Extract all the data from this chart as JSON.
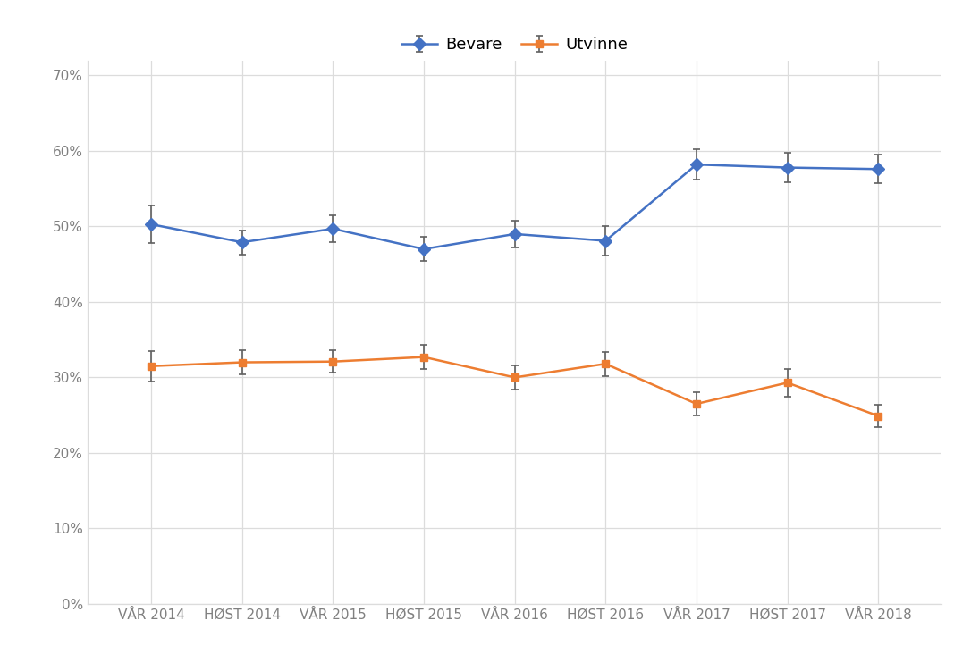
{
  "x_labels": [
    "VÅR 2014",
    "HØST 2014",
    "VÅR 2015",
    "HØST 2015",
    "VÅR 2016",
    "HØST 2016",
    "VÅR 2017",
    "HØST 2017",
    "VÅR 2018"
  ],
  "bevare_y": [
    0.503,
    0.479,
    0.497,
    0.47,
    0.49,
    0.481,
    0.582,
    0.578,
    0.576
  ],
  "bevare_err": [
    0.025,
    0.016,
    0.018,
    0.016,
    0.018,
    0.019,
    0.02,
    0.02,
    0.019
  ],
  "utvinne_y": [
    0.315,
    0.32,
    0.321,
    0.327,
    0.3,
    0.318,
    0.265,
    0.293,
    0.249
  ],
  "utvinne_err": [
    0.02,
    0.016,
    0.015,
    0.016,
    0.016,
    0.016,
    0.015,
    0.018,
    0.015
  ],
  "bevare_color": "#4472C4",
  "utvinne_color": "#ED7D31",
  "background_color": "#FFFFFF",
  "grid_color": "#DCDCDC",
  "ylim": [
    0,
    0.72
  ],
  "yticks": [
    0.0,
    0.1,
    0.2,
    0.3,
    0.4,
    0.5,
    0.6,
    0.7
  ],
  "legend_bevare": "Bevare",
  "legend_utvinne": "Utvinne",
  "marker_size_bevare": 7,
  "marker_size_utvinne": 6,
  "line_width": 1.8,
  "capsize": 3,
  "tick_fontsize": 11,
  "tick_color": "#808080",
  "legend_fontsize": 13
}
